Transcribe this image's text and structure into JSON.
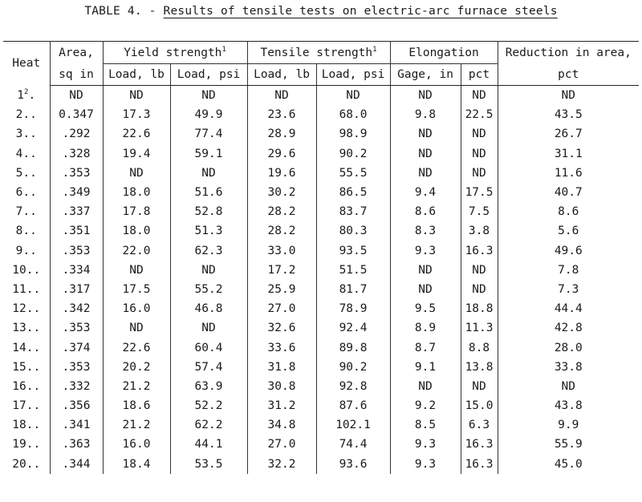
{
  "caption": {
    "label": "TABLE 4. - ",
    "title": "Results of tensile tests on electric-arc furnace steels"
  },
  "header": {
    "heat": "Heat",
    "area_line1": "Area,",
    "area_line2": "sq in",
    "yield": "Yield strength",
    "yield_note": "1",
    "tensile": "Tensile strength",
    "tensile_note": "1",
    "elongation": "Elongation",
    "reduction_line1": "Reduction in area,",
    "reduction_line2": "pct",
    "yield_load_lb": "Load, lb",
    "yield_load_psi": "Load, psi",
    "tensile_load_lb": "Load, lb",
    "tensile_load_psi": "Load, psi",
    "gage": "Gage, in",
    "elong_pct": "pct"
  },
  "rows": [
    {
      "heat": "1",
      "heat_note": "2",
      "heat_suffix": ".",
      "area": "ND",
      "y_lb": "ND",
      "y_psi": "ND",
      "t_lb": "ND",
      "t_psi": "ND",
      "gage": "ND",
      "pct": "ND",
      "red": "ND"
    },
    {
      "heat": "2..",
      "area": "0.347",
      "y_lb": "17.3",
      "y_psi": "49.9",
      "t_lb": "23.6",
      "t_psi": "68.0",
      "gage": "9.8",
      "pct": "22.5",
      "red": "43.5"
    },
    {
      "heat": "3..",
      "area": ".292",
      "y_lb": "22.6",
      "y_psi": "77.4",
      "t_lb": "28.9",
      "t_psi": "98.9",
      "gage": "ND",
      "pct": "ND",
      "red": "26.7"
    },
    {
      "heat": "4..",
      "area": ".328",
      "y_lb": "19.4",
      "y_psi": "59.1",
      "t_lb": "29.6",
      "t_psi": "90.2",
      "gage": "ND",
      "pct": "ND",
      "red": "31.1"
    },
    {
      "heat": "5..",
      "area": ".353",
      "y_lb": "ND",
      "y_psi": "ND",
      "t_lb": "19.6",
      "t_psi": "55.5",
      "gage": "ND",
      "pct": "ND",
      "red": "11.6"
    },
    {
      "heat": "6..",
      "area": ".349",
      "y_lb": "18.0",
      "y_psi": "51.6",
      "t_lb": "30.2",
      "t_psi": "86.5",
      "gage": "9.4",
      "pct": "17.5",
      "red": "40.7"
    },
    {
      "heat": "7..",
      "area": ".337",
      "y_lb": "17.8",
      "y_psi": "52.8",
      "t_lb": "28.2",
      "t_psi": "83.7",
      "gage": "8.6",
      "pct": "7.5",
      "red": "8.6"
    },
    {
      "heat": "8..",
      "area": ".351",
      "y_lb": "18.0",
      "y_psi": "51.3",
      "t_lb": "28.2",
      "t_psi": "80.3",
      "gage": "8.3",
      "pct": "3.8",
      "red": "5.6"
    },
    {
      "heat": "9..",
      "area": ".353",
      "y_lb": "22.0",
      "y_psi": "62.3",
      "t_lb": "33.0",
      "t_psi": "93.5",
      "gage": "9.3",
      "pct": "16.3",
      "red": "49.6"
    },
    {
      "heat": "10..",
      "area": ".334",
      "y_lb": "ND",
      "y_psi": "ND",
      "t_lb": "17.2",
      "t_psi": "51.5",
      "gage": "ND",
      "pct": "ND",
      "red": "7.8"
    },
    {
      "heat": "11..",
      "area": ".317",
      "y_lb": "17.5",
      "y_psi": "55.2",
      "t_lb": "25.9",
      "t_psi": "81.7",
      "gage": "ND",
      "pct": "ND",
      "red": "7.3"
    },
    {
      "heat": "12..",
      "area": ".342",
      "y_lb": "16.0",
      "y_psi": "46.8",
      "t_lb": "27.0",
      "t_psi": "78.9",
      "gage": "9.5",
      "pct": "18.8",
      "red": "44.4"
    },
    {
      "heat": "13..",
      "area": ".353",
      "y_lb": "ND",
      "y_psi": "ND",
      "t_lb": "32.6",
      "t_psi": "92.4",
      "gage": "8.9",
      "pct": "11.3",
      "red": "42.8"
    },
    {
      "heat": "14..",
      "area": ".374",
      "y_lb": "22.6",
      "y_psi": "60.4",
      "t_lb": "33.6",
      "t_psi": "89.8",
      "gage": "8.7",
      "pct": "8.8",
      "red": "28.0"
    },
    {
      "heat": "15..",
      "area": ".353",
      "y_lb": "20.2",
      "y_psi": "57.4",
      "t_lb": "31.8",
      "t_psi": "90.2",
      "gage": "9.1",
      "pct": "13.8",
      "red": "33.8"
    },
    {
      "heat": "16..",
      "area": ".332",
      "y_lb": "21.2",
      "y_psi": "63.9",
      "t_lb": "30.8",
      "t_psi": "92.8",
      "gage": "ND",
      "pct": "ND",
      "red": "ND"
    },
    {
      "heat": "17..",
      "area": ".356",
      "y_lb": "18.6",
      "y_psi": "52.2",
      "t_lb": "31.2",
      "t_psi": "87.6",
      "gage": "9.2",
      "pct": "15.0",
      "red": "43.8"
    },
    {
      "heat": "18..",
      "area": ".341",
      "y_lb": "21.2",
      "y_psi": "62.2",
      "t_lb": "34.8",
      "t_psi": "102.1",
      "gage": "8.5",
      "pct": "6.3",
      "red": "9.9"
    },
    {
      "heat": "19..",
      "area": ".363",
      "y_lb": "16.0",
      "y_psi": "44.1",
      "t_lb": "27.0",
      "t_psi": "74.4",
      "gage": "9.3",
      "pct": "16.3",
      "red": "55.9"
    },
    {
      "heat": "20..",
      "area": ".344",
      "y_lb": "18.4",
      "y_psi": "53.5",
      "t_lb": "32.2",
      "t_psi": "93.6",
      "gage": "9.3",
      "pct": "16.3",
      "red": "45.0"
    }
  ]
}
